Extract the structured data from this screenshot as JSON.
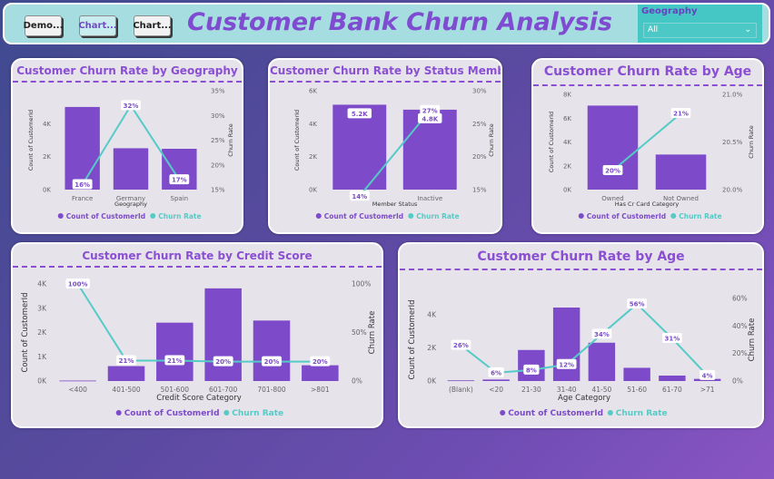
{
  "header": {
    "title": "Customer Bank Churn Analysis",
    "nav_buttons": [
      "Demo...",
      "Chart...",
      "Chart..."
    ],
    "active_button": 1,
    "slicer": {
      "label": "Geography",
      "value": "All"
    }
  },
  "colors": {
    "bar": "#7d4bc9",
    "line": "#54cbc7",
    "title": "#8a4fd3"
  },
  "chart_data": [
    {
      "id": "geo",
      "type": "bar",
      "title": "Customer Churn Rate by Geography",
      "xlabel": "Geography",
      "ylabel": "Count of CustomerId",
      "y2label": "Churn Rate",
      "categories": [
        "France",
        "Germany",
        "Spain"
      ],
      "ylim": [
        0,
        6000
      ],
      "yticks": [
        "0K",
        "2K",
        "4K"
      ],
      "y2lim": [
        15,
        35
      ],
      "y2ticks": [
        "15%",
        "20%",
        "25%",
        "30%",
        "35%"
      ],
      "series": [
        {
          "name": "Count of CustomerId",
          "values": [
            5014,
            2509,
            2477
          ],
          "labels": []
        },
        {
          "name": "Churn Rate",
          "values": [
            16,
            32,
            17
          ],
          "labels": [
            "16%",
            "32%",
            "17%"
          ]
        }
      ],
      "legend": [
        "Count of CustomerId",
        "Churn Rate"
      ]
    },
    {
      "id": "member",
      "type": "bar",
      "title": "Customer Churn Rate by Status Member",
      "xlabel": "Member Status",
      "ylabel": "Count of CustomerId",
      "y2label": "Churn Rate",
      "categories": [
        "Active",
        "Inactive"
      ],
      "ylim": [
        0,
        6000
      ],
      "yticks": [
        "0K",
        "2K",
        "4K",
        "6K"
      ],
      "y2lim": [
        15,
        30
      ],
      "y2ticks": [
        "15%",
        "20%",
        "25%",
        "30%"
      ],
      "series": [
        {
          "name": "Count of CustomerId",
          "values": [
            5151,
            4849
          ],
          "labels": [
            "5.2K",
            "4.8K"
          ]
        },
        {
          "name": "Churn Rate",
          "values": [
            14,
            27
          ],
          "labels": [
            "14%",
            "27%"
          ]
        }
      ],
      "legend": [
        "Count of CustomerId",
        "Churn Rate"
      ]
    },
    {
      "id": "card",
      "type": "bar",
      "title": "Customer Churn Rate by Age",
      "xlabel": "Has Cr Card Category",
      "ylabel": "Count of CustomerId",
      "y2label": "Churn Rate",
      "categories": [
        "Owned",
        "Not Owned"
      ],
      "ylim": [
        0,
        8000
      ],
      "yticks": [
        "0K",
        "2K",
        "4K",
        "6K",
        "8K"
      ],
      "y2lim": [
        20.0,
        21.0
      ],
      "y2ticks": [
        "20.0%",
        "20.5%",
        "21.0%"
      ],
      "series": [
        {
          "name": "Count of CustomerId",
          "values": [
            7055,
            2945
          ],
          "labels": []
        },
        {
          "name": "Churn Rate",
          "values": [
            20.2,
            20.8
          ],
          "labels": [
            "20%",
            "21%"
          ]
        }
      ],
      "legend": [
        "Count of CustomerId",
        "Churn Rate"
      ]
    },
    {
      "id": "credit",
      "type": "bar",
      "title": "Customer Churn Rate by Credit Score",
      "xlabel": "Credit Score Category",
      "ylabel": "Count of CustomerId",
      "y2label": "Churn Rate",
      "categories": [
        "<400",
        "401-500",
        "501-600",
        "601-700",
        "701-800",
        ">801"
      ],
      "ylim": [
        0,
        4000
      ],
      "yticks": [
        "0K",
        "1K",
        "2K",
        "3K",
        "4K"
      ],
      "y2lim": [
        0,
        100
      ],
      "y2ticks": [
        "0%",
        "50%",
        "100%"
      ],
      "series": [
        {
          "name": "Count of CustomerId",
          "values": [
            19,
            615,
            2405,
            3818,
            2493,
            650
          ],
          "labels": []
        },
        {
          "name": "Churn Rate",
          "values": [
            100,
            21,
            21,
            20,
            20,
            20
          ],
          "labels": [
            "100%",
            "21%",
            "21%",
            "20%",
            "20%",
            "20%"
          ]
        }
      ],
      "legend": [
        "Count of CustomerId",
        "Churn Rate"
      ]
    },
    {
      "id": "age",
      "type": "bar",
      "title": "Customer Churn Rate by Age",
      "xlabel": "Age Category",
      "ylabel": "Count of CustomerId",
      "y2label": "Churn Rate",
      "categories": [
        "(Blank)",
        "<20",
        "21-30",
        "31-40",
        "41-50",
        "51-60",
        "61-70",
        ">71"
      ],
      "ylim": [
        0,
        5000
      ],
      "yticks": [
        "0K",
        "2K",
        "4K"
      ],
      "y2lim": [
        0,
        60
      ],
      "y2ticks": [
        "0%",
        "20%",
        "40%",
        "60%"
      ],
      "series": [
        {
          "name": "Count of CustomerId",
          "values": [
            40,
            90,
            1880,
            4450,
            2320,
            800,
            330,
            130
          ],
          "labels": []
        },
        {
          "name": "Churn Rate",
          "values": [
            26,
            6,
            8,
            12,
            34,
            56,
            31,
            4
          ],
          "labels": [
            "26%",
            "6%",
            "8%",
            "12%",
            "34%",
            "56%",
            "31%",
            "4%"
          ]
        }
      ],
      "legend": [
        "Count of CustomerId",
        "Churn Rate"
      ]
    }
  ]
}
